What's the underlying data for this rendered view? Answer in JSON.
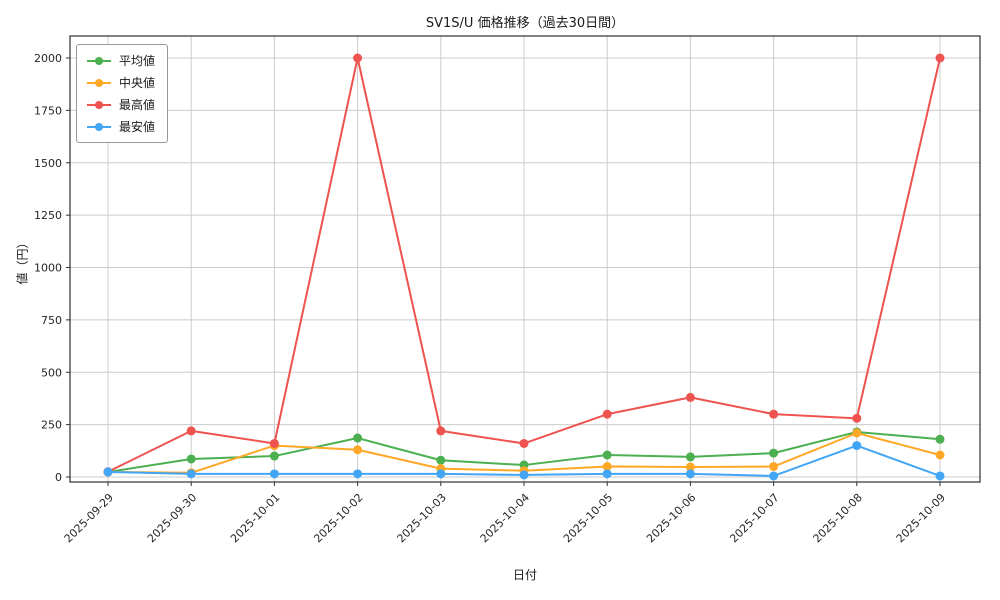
{
  "chart_data": {
    "type": "line",
    "title": "SV1S/U 価格推移（過去30日間）",
    "xlabel": "日付",
    "ylabel": "値（円）",
    "ylim": [
      0,
      2000
    ],
    "yticks": [
      0,
      250,
      500,
      750,
      1000,
      1250,
      1500,
      1750,
      2000
    ],
    "grid": true,
    "legend_position": "upper-left",
    "categories": [
      "2025-09-29",
      "2025-09-30",
      "2025-10-01",
      "2025-10-02",
      "2025-10-03",
      "2025-10-04",
      "2025-10-05",
      "2025-10-06",
      "2025-10-07",
      "2025-10-08",
      "2025-10-09"
    ],
    "series": [
      {
        "key": "average",
        "name": "平均値",
        "color": "#4caf50",
        "values": [
          24,
          86,
          100,
          186,
          80,
          57,
          105,
          96,
          114,
          215,
          180
        ]
      },
      {
        "key": "median",
        "name": "中央値",
        "color": "#ffa726",
        "values": [
          24,
          20,
          150,
          130,
          40,
          30,
          50,
          48,
          50,
          210,
          105
        ]
      },
      {
        "key": "highest",
        "name": "最高値",
        "color": "#ef5350",
        "values": [
          25,
          220,
          160,
          2000,
          220,
          160,
          300,
          380,
          300,
          280,
          2000
        ]
      },
      {
        "key": "lowest",
        "name": "最安値",
        "color": "#42a5f5",
        "values": [
          24,
          15,
          15,
          15,
          15,
          10,
          15,
          15,
          5,
          150,
          5
        ]
      }
    ],
    "colors": {
      "grid": "#cccccc",
      "spine": "#2e2e2e",
      "tick_text": "#262626"
    }
  }
}
